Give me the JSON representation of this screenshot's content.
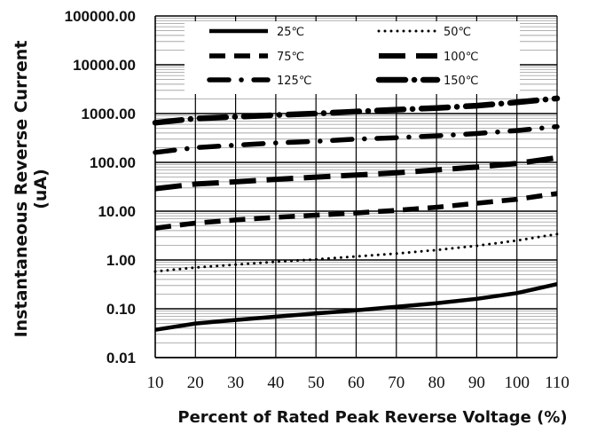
{
  "chart_data": {
    "type": "line",
    "title": "",
    "xlabel": "Percent of  Rated Peak Reverse Voltage (%)",
    "ylabel": "Instantaneous Reverse Current",
    "ylabel_unit": "(uA)",
    "xlim": [
      10,
      110
    ],
    "ylim": [
      0.01,
      100000
    ],
    "y_scale": "log",
    "grid": true,
    "legend_position": "top",
    "x_ticks": [
      "10",
      "20",
      "30",
      "40",
      "50",
      "60",
      "70",
      "80",
      "90",
      "100",
      "110"
    ],
    "y_ticks": [
      "100000.00",
      "10000.00",
      "1000.00",
      "100.00",
      "10.00",
      "1.00",
      "0.10",
      "0.01"
    ],
    "series": [
      {
        "name": "25℃",
        "style": "solid",
        "x": [
          10,
          20,
          30,
          40,
          50,
          60,
          70,
          80,
          90,
          100,
          110
        ],
        "y": [
          0.037,
          0.05,
          0.059,
          0.069,
          0.08,
          0.093,
          0.11,
          0.13,
          0.16,
          0.21,
          0.32
        ]
      },
      {
        "name": "50℃",
        "style": "dotted",
        "x": [
          10,
          20,
          30,
          40,
          50,
          60,
          70,
          80,
          90,
          100,
          110
        ],
        "y": [
          0.58,
          0.7,
          0.8,
          0.92,
          1.03,
          1.18,
          1.35,
          1.6,
          1.95,
          2.5,
          3.4
        ]
      },
      {
        "name": "75℃",
        "style": "dash",
        "x": [
          10,
          20,
          30,
          40,
          50,
          60,
          70,
          80,
          90,
          100,
          110
        ],
        "y": [
          4.5,
          5.7,
          6.6,
          7.5,
          8.3,
          9.2,
          10.4,
          12,
          14.5,
          17.5,
          23
        ]
      },
      {
        "name": "100℃",
        "style": "longdash",
        "x": [
          10,
          20,
          30,
          40,
          50,
          60,
          70,
          80,
          90,
          100,
          110
        ],
        "y": [
          29,
          36,
          40,
          45,
          50,
          55,
          61,
          70,
          80,
          95,
          125
        ]
      },
      {
        "name": "125℃",
        "style": "dashdot",
        "x": [
          10,
          20,
          30,
          40,
          50,
          60,
          70,
          80,
          90,
          100,
          110
        ],
        "y": [
          160,
          200,
          225,
          250,
          270,
          300,
          320,
          350,
          390,
          450,
          540
        ]
      },
      {
        "name": "150℃",
        "style": "longdashdot",
        "x": [
          10,
          20,
          30,
          40,
          50,
          60,
          70,
          80,
          90,
          100,
          110
        ],
        "y": [
          650,
          790,
          860,
          930,
          1000,
          1100,
          1200,
          1300,
          1450,
          1700,
          2050
        ]
      }
    ]
  }
}
